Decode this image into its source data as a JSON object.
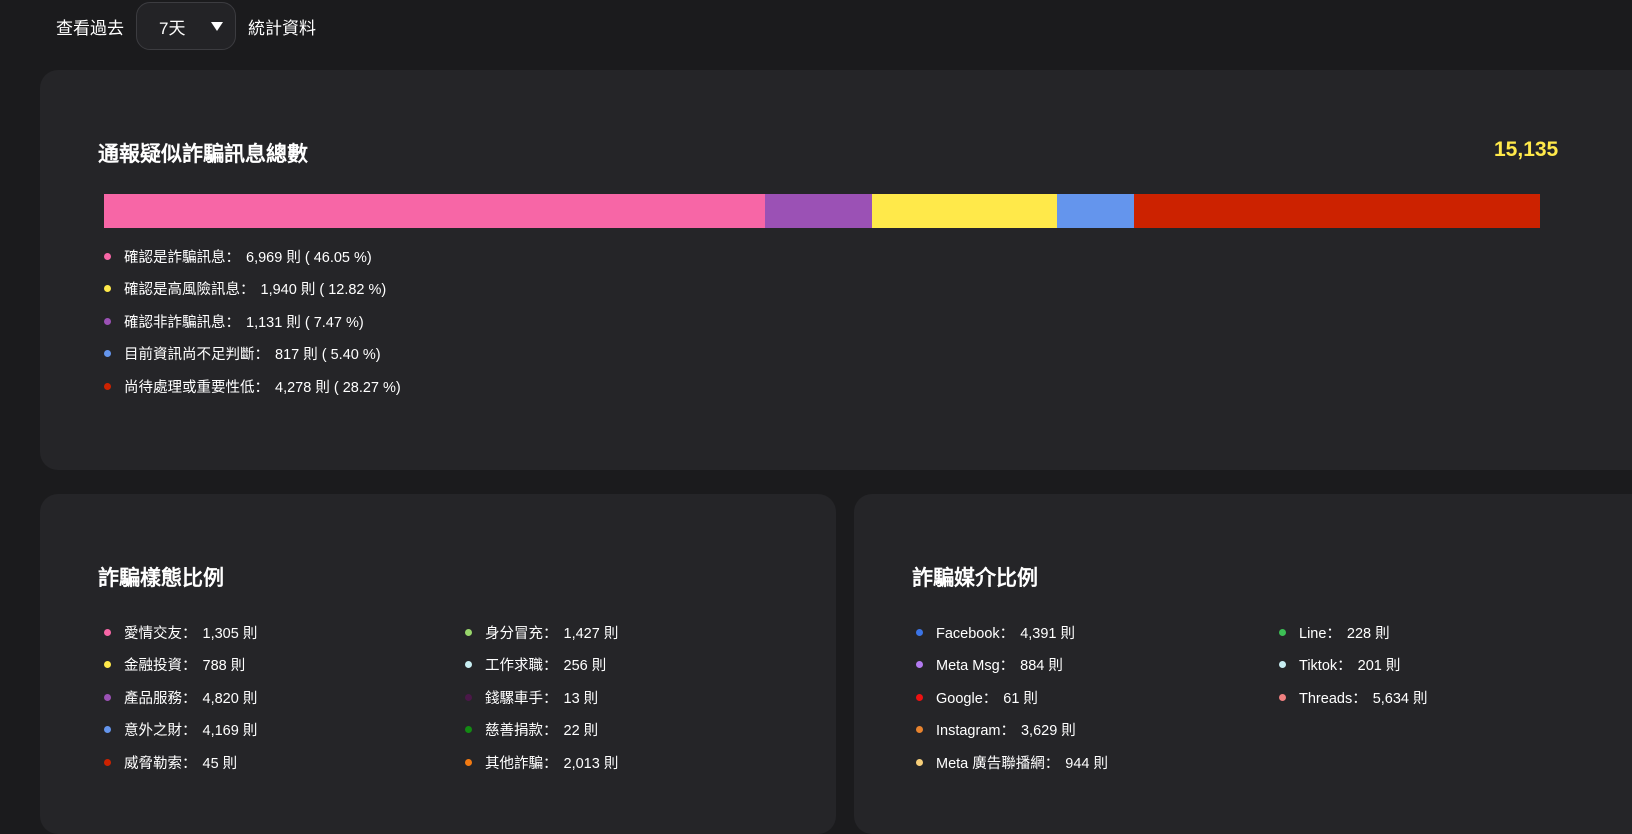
{
  "filter": {
    "prefix": "查看過去",
    "selected": "7天",
    "suffix": "統計資料"
  },
  "summary": {
    "title": "通報疑似詐騙訊息總數",
    "total": "15,135",
    "bar": [
      {
        "key": "fraud",
        "percent": 46.05,
        "color": "#f766a6"
      },
      {
        "key": "not_fraud",
        "percent": 7.47,
        "color": "#9b51b5"
      },
      {
        "key": "high_risk",
        "percent": 12.82,
        "color": "#ffe94a"
      },
      {
        "key": "insufficient",
        "percent": 5.4,
        "color": "#6495ed"
      },
      {
        "key": "pending",
        "percent": 28.27,
        "color": "#cc2200"
      }
    ],
    "legend": [
      {
        "label": "確認是詐騙訊息：",
        "value": "6,969 則 ( 46.05 %)",
        "color": "#f766a6"
      },
      {
        "label": "確認是高風險訊息：",
        "value": "1,940 則 ( 12.82 %)",
        "color": "#ffe94a"
      },
      {
        "label": "確認非詐騙訊息：",
        "value": "1,131 則 ( 7.47 %)",
        "color": "#9b51b5"
      },
      {
        "label": "目前資訊尚不足判斷：",
        "value": "817 則 ( 5.40 %)",
        "color": "#6495ed"
      },
      {
        "label": "尚待處理或重要性低：",
        "value": "4,278 則 ( 28.27 %)",
        "color": "#cc2200"
      }
    ]
  },
  "types": {
    "title": "詐騙樣態比例",
    "col1": [
      {
        "label": "愛情交友：",
        "value": "1,305 則",
        "color": "#f766a6"
      },
      {
        "label": "金融投資：",
        "value": "788 則",
        "color": "#ffe94a"
      },
      {
        "label": "產品服務：",
        "value": "4,820 則",
        "color": "#9b51b5"
      },
      {
        "label": "意外之財：",
        "value": "4,169 則",
        "color": "#6495ed"
      },
      {
        "label": "威脅勒索：",
        "value": "45 則",
        "color": "#cc2200"
      }
    ],
    "col2": [
      {
        "label": "身分冒充：",
        "value": "1,427 則",
        "color": "#98d66b"
      },
      {
        "label": "工作求職：",
        "value": "256 則",
        "color": "#c8eef2"
      },
      {
        "label": "錢騾車手：",
        "value": "13 則",
        "color": "#4a1848"
      },
      {
        "label": "慈善捐款：",
        "value": "22 則",
        "color": "#138a13"
      },
      {
        "label": "其他詐騙：",
        "value": "2,013 則",
        "color": "#f27a12"
      }
    ]
  },
  "media": {
    "title": "詐騙媒介比例",
    "col1": [
      {
        "label": "Facebook：",
        "value": "4,391 則",
        "color": "#3b74e6"
      },
      {
        "label": "Meta Msg：",
        "value": "884 則",
        "color": "#b37af0"
      },
      {
        "label": "Google：",
        "value": "61 則",
        "color": "#ee1111"
      },
      {
        "label": "Instagram：",
        "value": "3,629 則",
        "color": "#e8832e"
      },
      {
        "label": "Meta 廣告聯播網：",
        "value": "944 則",
        "color": "#f7cf7a"
      }
    ],
    "col2": [
      {
        "label": "Line：",
        "value": "228 則",
        "color": "#3cbf55"
      },
      {
        "label": "Tiktok：",
        "value": "201 則",
        "color": "#c8eef2"
      },
      {
        "label": "Threads：",
        "value": "5,634 則",
        "color": "#f08080"
      }
    ]
  }
}
